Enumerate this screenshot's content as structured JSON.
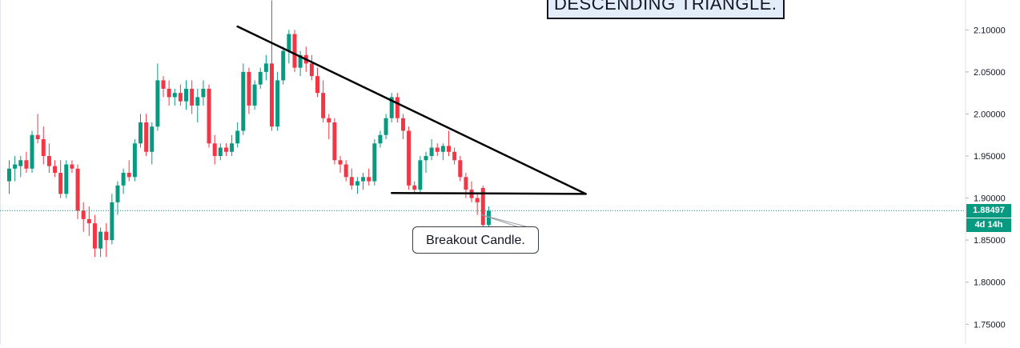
{
  "chart_data": {
    "type": "candlestick",
    "title": "DESCENDING TRIANGLE.",
    "annotations": [
      {
        "name": "breakout-callout",
        "text": "Breakout Candle."
      }
    ],
    "yaxis": {
      "ticks": [
        2.1,
        2.05,
        2.0,
        1.95,
        1.9,
        1.85,
        1.8,
        1.75
      ],
      "tick_labels": [
        "2.10000",
        "2.05000",
        "2.00000",
        "1.95000",
        "1.90000",
        "1.85000",
        "1.80000",
        "1.75000"
      ],
      "range": [
        1.7265,
        2.1355
      ]
    },
    "current_price": {
      "value": 1.88497,
      "label": "1.88497",
      "countdown": "4d 14h"
    },
    "trendlines": [
      {
        "name": "descending-resistance",
        "from": [
          40,
          2.104
        ],
        "to": [
          101,
          1.905
        ]
      },
      {
        "name": "horizontal-support",
        "from": [
          67,
          1.906
        ],
        "to": [
          101,
          1.905
        ]
      }
    ],
    "colors": {
      "up": "#089981",
      "down": "#f23645",
      "line": "#000000",
      "axis_text": "#131722"
    },
    "candles": [
      [
        1.92,
        1.945,
        1.905,
        1.935
      ],
      [
        1.935,
        1.95,
        1.92,
        1.94
      ],
      [
        1.938,
        1.95,
        1.925,
        1.945
      ],
      [
        1.945,
        1.955,
        1.93,
        1.935
      ],
      [
        1.935,
        1.98,
        1.93,
        1.975
      ],
      [
        1.975,
        2.0,
        1.965,
        1.97
      ],
      [
        1.97,
        1.985,
        1.94,
        1.95
      ],
      [
        1.95,
        1.965,
        1.93,
        1.938
      ],
      [
        1.938,
        1.945,
        1.925,
        1.93
      ],
      [
        1.93,
        1.945,
        1.9,
        1.905
      ],
      [
        1.905,
        1.945,
        1.9,
        1.94
      ],
      [
        1.94,
        1.945,
        1.93,
        1.935
      ],
      [
        1.935,
        1.94,
        1.875,
        1.885
      ],
      [
        1.885,
        1.895,
        1.86,
        1.875
      ],
      [
        1.875,
        1.89,
        1.855,
        1.87
      ],
      [
        1.87,
        1.88,
        1.83,
        1.84
      ],
      [
        1.84,
        1.865,
        1.83,
        1.86
      ],
      [
        1.86,
        1.87,
        1.83,
        1.85
      ],
      [
        1.85,
        1.905,
        1.845,
        1.895
      ],
      [
        1.895,
        1.92,
        1.88,
        1.915
      ],
      [
        1.915,
        1.935,
        1.905,
        1.93
      ],
      [
        1.93,
        1.945,
        1.92,
        1.925
      ],
      [
        1.925,
        1.97,
        1.92,
        1.965
      ],
      [
        1.965,
        2.0,
        1.96,
        1.99
      ],
      [
        1.99,
        2.0,
        1.95,
        1.955
      ],
      [
        1.955,
        1.99,
        1.94,
        1.985
      ],
      [
        1.985,
        2.06,
        1.98,
        2.04
      ],
      [
        2.04,
        2.045,
        2.02,
        2.03
      ],
      [
        2.03,
        2.04,
        2.01,
        2.02
      ],
      [
        2.02,
        2.03,
        2.01,
        2.025
      ],
      [
        2.025,
        2.035,
        2.01,
        2.015
      ],
      [
        2.015,
        2.04,
        2.005,
        2.03
      ],
      [
        2.03,
        2.04,
        2.0,
        2.01
      ],
      [
        2.01,
        2.03,
        1.99,
        2.02
      ],
      [
        2.02,
        2.04,
        2.01,
        2.03
      ],
      [
        2.03,
        2.035,
        1.96,
        1.965
      ],
      [
        1.965,
        1.975,
        1.94,
        1.95
      ],
      [
        1.95,
        1.965,
        1.945,
        1.96
      ],
      [
        1.96,
        1.965,
        1.95,
        1.955
      ],
      [
        1.955,
        1.975,
        1.95,
        1.965
      ],
      [
        1.965,
        1.99,
        1.96,
        1.98
      ],
      [
        1.98,
        2.06,
        1.975,
        2.05
      ],
      [
        2.05,
        2.055,
        2.0,
        2.01
      ],
      [
        2.01,
        2.04,
        2.005,
        2.035
      ],
      [
        2.035,
        2.055,
        2.03,
        2.05
      ],
      [
        2.05,
        2.07,
        2.04,
        2.06
      ],
      [
        2.06,
        2.135,
        1.98,
        1.985
      ],
      [
        1.985,
        2.05,
        1.98,
        2.04
      ],
      [
        2.04,
        2.08,
        2.035,
        2.075
      ],
      [
        2.075,
        2.1,
        2.06,
        2.095
      ],
      [
        2.095,
        2.1,
        2.05,
        2.055
      ],
      [
        2.055,
        2.075,
        2.045,
        2.07
      ],
      [
        2.07,
        2.08,
        2.05,
        2.06
      ],
      [
        2.06,
        2.07,
        2.04,
        2.045
      ],
      [
        2.045,
        2.055,
        2.02,
        2.025
      ],
      [
        2.025,
        2.04,
        1.99,
        1.995
      ],
      [
        1.995,
        2.0,
        1.97,
        1.99
      ],
      [
        1.99,
        1.995,
        1.94,
        1.945
      ],
      [
        1.945,
        1.95,
        1.93,
        1.94
      ],
      [
        1.94,
        1.945,
        1.92,
        1.925
      ],
      [
        1.925,
        1.935,
        1.91,
        1.915
      ],
      [
        1.915,
        1.925,
        1.905,
        1.92
      ],
      [
        1.92,
        1.93,
        1.91,
        1.925
      ],
      [
        1.925,
        1.935,
        1.915,
        1.92
      ],
      [
        1.92,
        1.97,
        1.915,
        1.965
      ],
      [
        1.965,
        1.98,
        1.96,
        1.975
      ],
      [
        1.975,
        2.0,
        1.97,
        1.995
      ],
      [
        1.995,
        2.025,
        1.99,
        2.02
      ],
      [
        2.02,
        2.025,
        1.99,
        1.995
      ],
      [
        1.995,
        2.0,
        1.97,
        1.98
      ],
      [
        1.98,
        1.985,
        1.91,
        1.915
      ],
      [
        1.915,
        1.92,
        1.905,
        1.91
      ],
      [
        1.91,
        1.95,
        1.905,
        1.945
      ],
      [
        1.945,
        1.955,
        1.93,
        1.95
      ],
      [
        1.95,
        1.97,
        1.945,
        1.96
      ],
      [
        1.96,
        1.965,
        1.95,
        1.955
      ],
      [
        1.955,
        1.965,
        1.945,
        1.962
      ],
      [
        1.962,
        1.98,
        1.95,
        1.955
      ],
      [
        1.955,
        1.96,
        1.94,
        1.945
      ],
      [
        1.945,
        1.95,
        1.92,
        1.925
      ],
      [
        1.925,
        1.93,
        1.9,
        1.91
      ],
      [
        1.91,
        1.92,
        1.895,
        1.9
      ],
      [
        1.9,
        1.905,
        1.88,
        1.895
      ],
      [
        1.912,
        1.915,
        1.85,
        1.868
      ],
      [
        1.868,
        1.89,
        1.866,
        1.885
      ]
    ]
  }
}
